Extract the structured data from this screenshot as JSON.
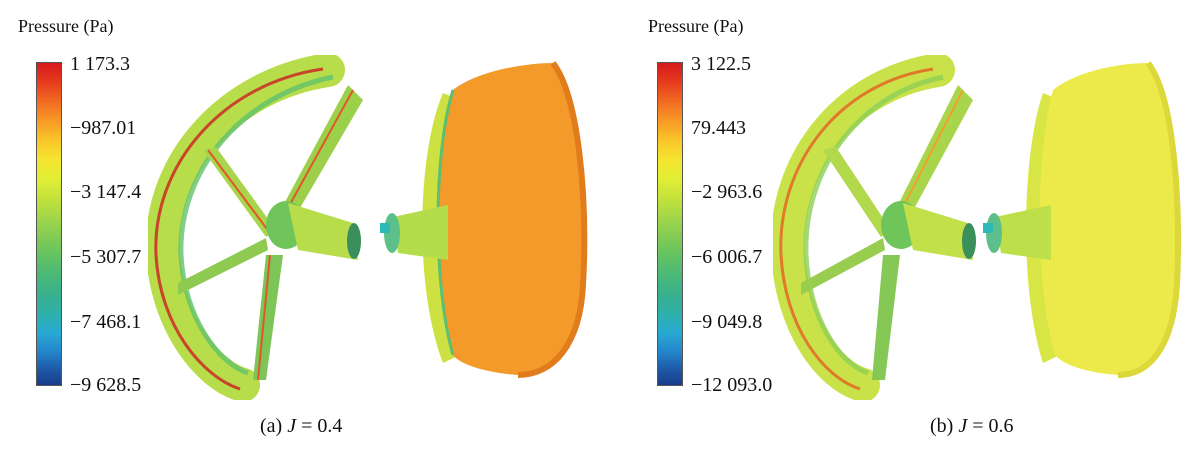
{
  "panels": [
    {
      "legend_title": "Pressure (Pa)",
      "ticks": [
        "1 173.3",
        "−987.01",
        "−3 147.4",
        "−5 307.7",
        "−7 468.1",
        "−9 628.5"
      ],
      "caption_prefix": "(a) ",
      "caption_var": "J",
      "caption_suffix": " = 0.4",
      "shroud_color": "#f39a2a",
      "shroud_edge_color": "#e07c1c"
    },
    {
      "legend_title": "Pressure (Pa)",
      "ticks": [
        "3 122.5",
        "79.443",
        "−2 963.6",
        "−6 006.7",
        "−9 049.8",
        "−12 093.0"
      ],
      "caption_prefix": "(b) ",
      "caption_var": "J",
      "caption_suffix": " = 0.6",
      "shroud_color": "#ecea4a",
      "shroud_edge_color": "#dcd83a"
    }
  ]
}
